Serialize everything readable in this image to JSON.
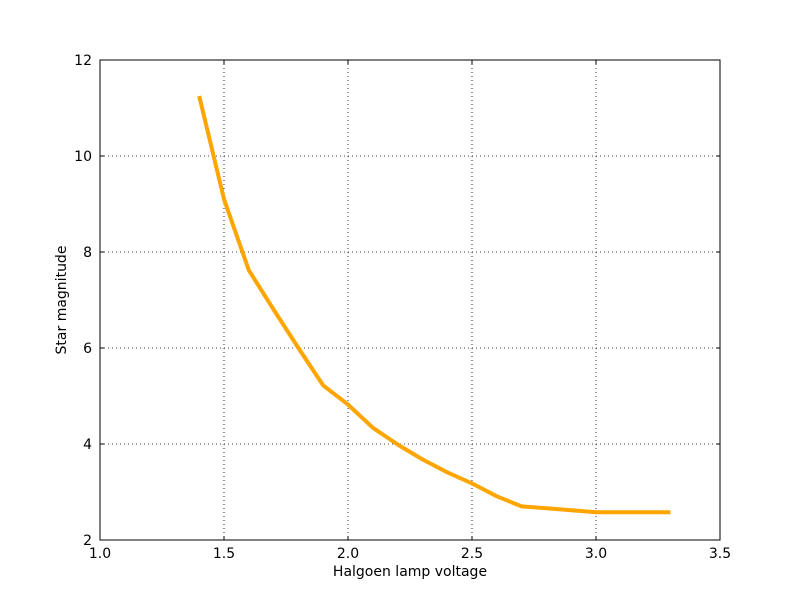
{
  "chart_data": {
    "type": "line",
    "title": "",
    "xlabel": "Halgoen lamp voltage",
    "ylabel": "Star magnitude",
    "xlim": [
      1.0,
      3.5
    ],
    "ylim": [
      2,
      12
    ],
    "xticks": [
      1.0,
      1.5,
      2.0,
      2.5,
      3.0,
      3.5
    ],
    "xtick_labels": [
      "1.0",
      "1.5",
      "2.0",
      "2.5",
      "3.0",
      "3.5"
    ],
    "yticks": [
      2,
      4,
      6,
      8,
      10,
      12
    ],
    "ytick_labels": [
      "2",
      "4",
      "6",
      "8",
      "10",
      "12"
    ],
    "grid": true,
    "legend": "none",
    "series": [
      {
        "color": "#ffa500",
        "x": [
          1.4,
          1.5,
          1.6,
          1.7,
          1.8,
          1.9,
          2.0,
          2.1,
          2.2,
          2.3,
          2.4,
          2.5,
          2.6,
          2.7,
          2.8,
          2.9,
          3.0,
          3.1,
          3.2,
          3.3
        ],
        "y": [
          11.25,
          9.1,
          7.62,
          6.8,
          6.0,
          5.22,
          4.82,
          4.34,
          3.99,
          3.68,
          3.41,
          3.18,
          2.91,
          2.7,
          2.66,
          2.62,
          2.58,
          2.58,
          2.58,
          2.58
        ]
      }
    ]
  }
}
